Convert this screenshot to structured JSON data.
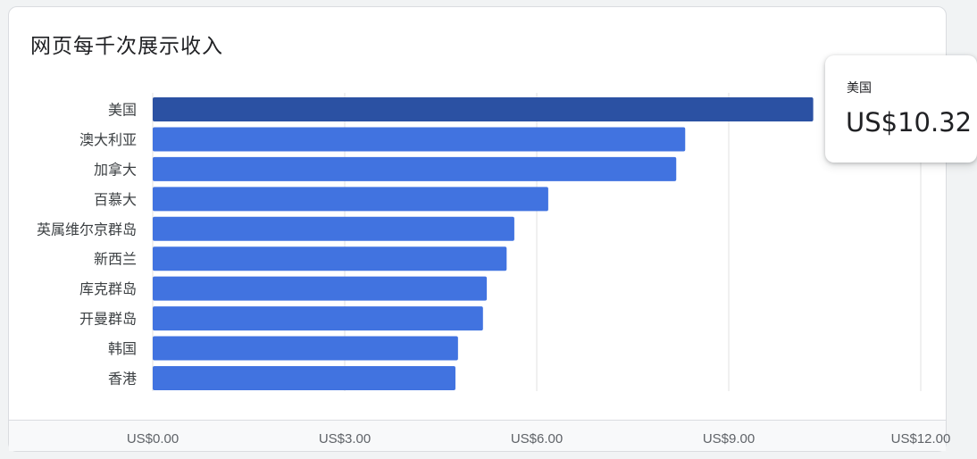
{
  "card": {
    "title": "网页每千次展示收入"
  },
  "tooltip": {
    "label": "美国",
    "value": "US$10.32"
  },
  "colors": {
    "bar": "#4173e0",
    "bar_highlight": "#2b51a3",
    "grid": "#e0e0e0",
    "label": "#3c4043",
    "tick": "#5f6368"
  },
  "chart_data": {
    "type": "bar",
    "orientation": "horizontal",
    "title": "网页每千次展示收入",
    "categories": [
      "美国",
      "澳大利亚",
      "加拿大",
      "百慕大",
      "英属维尔京群岛",
      "新西兰",
      "库克群岛",
      "开曼群岛",
      "韩国",
      "香港"
    ],
    "values": [
      10.32,
      8.32,
      8.18,
      6.18,
      5.65,
      5.53,
      5.22,
      5.16,
      4.77,
      4.73
    ],
    "highlighted_category": "美国",
    "xlim": [
      0,
      12
    ],
    "x_ticks": [
      0,
      3,
      6,
      9,
      12
    ],
    "x_tick_labels": [
      "US$0.00",
      "US$3.00",
      "US$6.00",
      "US$9.00",
      "US$12.00"
    ],
    "grid": true,
    "legend": "none"
  }
}
